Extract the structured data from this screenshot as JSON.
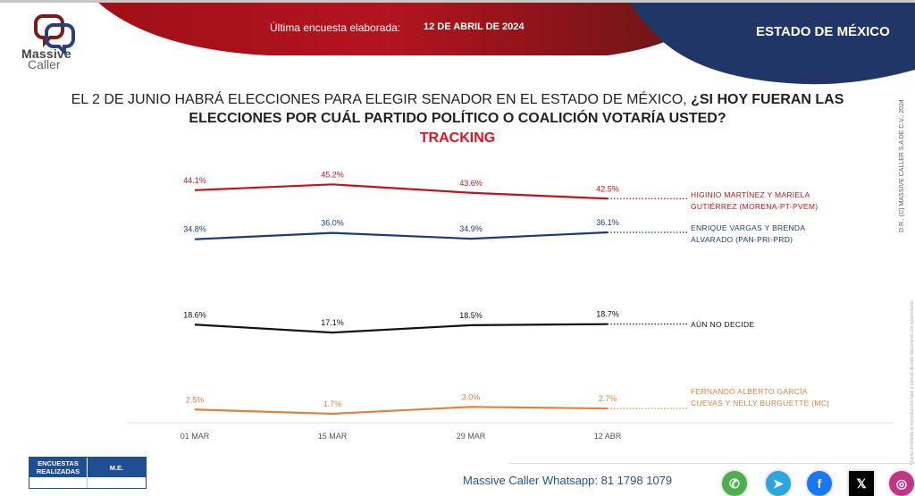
{
  "header": {
    "brand_line1": "Massive",
    "brand_line2": "Caller",
    "last_survey_label": "Última encuesta elaborada:",
    "last_survey_date": "12 DE ABRIL DE 2024",
    "state": "ESTADO DE MÉXICO",
    "colors": {
      "red": "#b5121b",
      "navy": "#1f3666"
    }
  },
  "question": {
    "plain": "EL 2 DE JUNIO HABRÁ ELECCIONES PARA ELEGIR SENADOR EN EL ESTADO DE MÉXICO, ",
    "bold_part1": "¿SI HOY FUERAN LAS",
    "bold_part2": "ELECCIONES POR CUÁL PARTIDO POLÍTICO O COALICIÓN VOTARÍA USTED?",
    "subtitle": "TRACKING"
  },
  "chart_data": {
    "type": "line",
    "title": "TRACKING",
    "x": [
      "01 MAR",
      "15 MAR",
      "29 MAR",
      "12 ABR"
    ],
    "ylabel": "",
    "xlabel": "",
    "ylim": [
      0,
      50
    ],
    "grid": false,
    "legend_position": "right",
    "series": [
      {
        "name": "HIGINIO MARTÍNEZ Y MARIELA GUTIÉRREZ (MORENA-PT-PVEM)",
        "legend_lines": [
          "HIGINIO MARTÍNEZ Y MARIELA",
          "GUTIÉRREZ (MORENA-PT-PVEM)"
        ],
        "color": "#c0141c",
        "values": [
          44.1,
          45.2,
          43.6,
          42.5
        ],
        "labels": [
          "44.1%",
          "45.2%",
          "43.6%",
          "42.5%"
        ]
      },
      {
        "name": "ENRIQUE VARGAS Y BRENDA ALVARADO (PAN-PRI-PRD)",
        "legend_lines": [
          "ENRIQUE VARGAS Y BRENDA",
          "ALVARADO (PAN-PRI-PRD)"
        ],
        "color": "#1f3a78",
        "values": [
          34.8,
          36.0,
          34.9,
          36.1
        ],
        "labels": [
          "34.8%",
          "36.0%",
          "34.9%",
          "36.1%"
        ]
      },
      {
        "name": "AÚN NO DECIDE",
        "legend_lines": [
          "AÚN NO DECIDE"
        ],
        "color": "#111111",
        "values": [
          18.6,
          17.1,
          18.5,
          18.7
        ],
        "labels": [
          "18.6%",
          "17.1%",
          "18.5%",
          "18.7%"
        ]
      },
      {
        "name": "FERNANDO ALBERTO GARCÍA CUEVAS Y NELLY BURGUETTE (MC)",
        "legend_lines": [
          "FERNANDO ALBERTO GARCÍA",
          "CUEVAS Y NELLY BURGUETTE (MC)"
        ],
        "color": "#e0823f",
        "values": [
          2.5,
          1.7,
          3.0,
          2.7
        ],
        "labels": [
          "2.5%",
          "1.7%",
          "3.0%",
          "2.7%"
        ]
      }
    ]
  },
  "sidebar": {
    "copyright": "D.R., (C) MASSIVE CALLER S.A DE C.V., 2024",
    "fine_print": "Queda prohibida la reproducción total o parcial de este documento sin autorización"
  },
  "footer": {
    "table_headers": [
      "ENCUESTAS REALIZADAS",
      "M.E."
    ],
    "whatsapp": "Massive Caller Whatsapp: 81 1798 1079",
    "social": [
      {
        "icon": "whatsapp-icon",
        "glyph": "✆",
        "color": "#4caf50"
      },
      {
        "icon": "telegram-icon",
        "glyph": "➤",
        "color": "#2ca5e0"
      },
      {
        "icon": "facebook-icon",
        "glyph": "f",
        "color": "#1877f2"
      },
      {
        "icon": "x-icon",
        "glyph": "𝕏",
        "color": "#000000"
      },
      {
        "icon": "instagram-icon",
        "glyph": "◎",
        "color": "#c13584"
      }
    ]
  }
}
